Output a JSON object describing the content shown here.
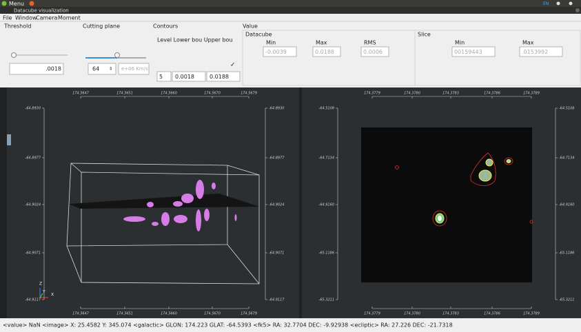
{
  "system_bar": {
    "menu": "Menu",
    "language": "EN"
  },
  "window": {
    "title": "Datacube visualization"
  },
  "menu_bar": [
    "File",
    "Window",
    "Camera",
    "Moment"
  ],
  "controls": {
    "threshold": {
      "label": "Threshold",
      "value": ".0018"
    },
    "cutting_plane": {
      "label": "Cutting plane",
      "slice": "64",
      "velocity_placeholder": "e+06 Km/s"
    },
    "contours": {
      "label": "Contours",
      "header": "Level Lower bou Upper bou",
      "level": "5",
      "lower": "0.0018",
      "upper": "0.0188"
    },
    "value": {
      "label": "Value",
      "datacube": {
        "label": "Datacube",
        "headers": [
          "Min",
          "Max",
          "RMS"
        ],
        "values": [
          "-0.0039",
          "0.0188",
          "0.0006"
        ]
      },
      "slice": {
        "label": "Slice",
        "headers": [
          "Min",
          "Max"
        ],
        "values": [
          "00159443",
          ".0153992"
        ]
      }
    }
  },
  "views": [
    {
      "x_ticks": [
        "174.5647",
        "174.5651",
        "174.5660",
        "174.5670",
        "174.5679"
      ],
      "y_ticks": [
        "-64.8930",
        "-64.8977",
        "-64.9024",
        "-64.9071",
        "-64.9117"
      ],
      "axes": [
        "Z",
        "Y",
        "X"
      ]
    },
    {
      "x_ticks": [
        "174.3779",
        "174.3780",
        "174.3783",
        "174.3786",
        "174.3789"
      ],
      "y_ticks": [
        "-64.5108",
        "-64.7134",
        "-64.9160",
        "-65.1186",
        "-65.3211"
      ]
    }
  ],
  "status_bar": "<value> NaN <image> X: 25.4582 Y: 345.074 <galactic> GLON: 174.223 GLAT: -64.5393 <fk5> RA: 32.7704 DEC: -9.92938 <ecliptic> RA: 27.226 DEC: -21.7318"
}
